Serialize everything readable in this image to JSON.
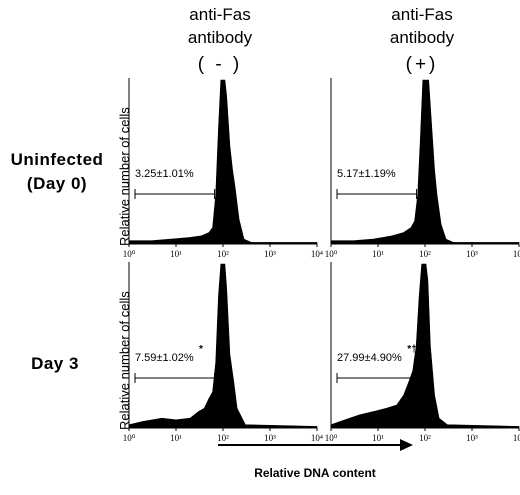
{
  "columns": [
    {
      "line1": "anti-Fas",
      "line2": "antibody",
      "sign": "( - )"
    },
    {
      "line1": "anti-Fas",
      "line2": "antibody",
      "sign": "(+)"
    }
  ],
  "rows": [
    {
      "line1": "Uninfected",
      "line2": "(Day 0)"
    },
    {
      "line1": "Day 3",
      "line2": ""
    }
  ],
  "ylabel": "Relative number of cells",
  "xlabel": "Relative DNA content",
  "chart_data": {
    "type": "area",
    "xscale": "log",
    "xlim": [
      1,
      10000
    ],
    "x_tick_labels": [
      "10⁰",
      "10¹",
      "10²",
      "10³",
      "10⁴"
    ],
    "ylabel": "Relative number of cells",
    "xlabel": "Relative DNA content",
    "panels": [
      {
        "row": "Uninfected (Day 0)",
        "column": "anti-Fas antibody (-)",
        "annotation": "3.25±1.01%",
        "marker": "",
        "gate": [
          1,
          60
        ],
        "x": [
          1,
          3,
          8,
          20,
          35,
          50,
          60,
          70,
          80,
          90,
          100,
          110,
          120,
          140,
          160,
          180,
          220,
          280,
          400,
          10000
        ],
        "y": [
          0.02,
          0.02,
          0.03,
          0.04,
          0.05,
          0.07,
          0.1,
          0.3,
          0.7,
          1.0,
          1.0,
          1.0,
          0.9,
          0.6,
          0.45,
          0.35,
          0.15,
          0.03,
          0.01,
          0.01
        ]
      },
      {
        "row": "Uninfected (Day 0)",
        "column": "anti-Fas antibody (+)",
        "annotation": "5.17±1.19%",
        "marker": "",
        "gate": [
          1,
          60
        ],
        "x": [
          1,
          3,
          8,
          20,
          35,
          50,
          60,
          70,
          80,
          90,
          100,
          110,
          120,
          140,
          160,
          180,
          220,
          280,
          400,
          10000
        ],
        "y": [
          0.02,
          0.02,
          0.03,
          0.05,
          0.07,
          0.1,
          0.14,
          0.3,
          0.65,
          1.0,
          1.0,
          1.0,
          1.0,
          0.7,
          0.45,
          0.3,
          0.12,
          0.03,
          0.01,
          0.01
        ]
      },
      {
        "row": "Day 3",
        "column": "anti-Fas antibody (-)",
        "annotation": "7.59±1.02%",
        "marker": "*",
        "gate": [
          1,
          60
        ],
        "x": [
          1,
          2,
          5,
          10,
          20,
          30,
          40,
          50,
          60,
          70,
          80,
          90,
          100,
          110,
          120,
          140,
          170,
          200,
          300,
          10000
        ],
        "y": [
          0.02,
          0.04,
          0.06,
          0.05,
          0.06,
          0.1,
          0.12,
          0.18,
          0.22,
          0.4,
          0.8,
          1.0,
          1.0,
          1.0,
          0.85,
          0.45,
          0.28,
          0.12,
          0.02,
          0.01
        ]
      },
      {
        "row": "Day 3",
        "column": "anti-Fas antibody (+)",
        "annotation": "27.99±4.90%",
        "marker": "*†",
        "gate": [
          1,
          60
        ],
        "x": [
          1,
          2,
          4,
          8,
          15,
          25,
          35,
          45,
          55,
          65,
          75,
          85,
          95,
          105,
          115,
          130,
          160,
          200,
          300,
          10000
        ],
        "y": [
          0.02,
          0.05,
          0.08,
          0.1,
          0.12,
          0.14,
          0.2,
          0.28,
          0.35,
          0.5,
          0.8,
          1.0,
          1.0,
          1.0,
          0.9,
          0.5,
          0.2,
          0.06,
          0.02,
          0.01
        ]
      }
    ]
  }
}
